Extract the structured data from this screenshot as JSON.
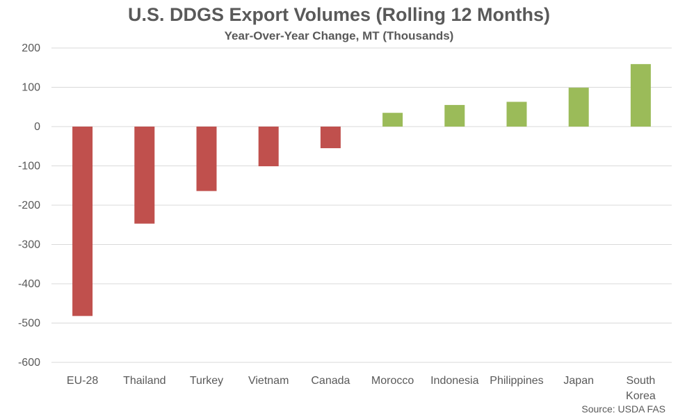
{
  "chart_data": {
    "type": "bar",
    "title": "U.S. DDGS Export Volumes (Rolling 12 Months)",
    "subtitle": "Year-Over-Year Change, MT (Thousands)",
    "categories": [
      "EU-28",
      "Thailand",
      "Turkey",
      "Vietnam",
      "Canada",
      "Morocco",
      "Indonesia",
      "Philippines",
      "Japan",
      "South Korea"
    ],
    "values": [
      -482,
      -247,
      -164,
      -101,
      -55,
      35,
      55,
      63,
      99,
      159
    ],
    "ylim": [
      -600,
      200
    ],
    "yticks": [
      200,
      100,
      0,
      -100,
      -200,
      -300,
      -400,
      -500,
      -600
    ],
    "grid": true,
    "colors": {
      "negative": "#c0504d",
      "positive": "#9bbb59",
      "grid": "#d9d9d9"
    },
    "source": "Source: USDA FAS"
  }
}
